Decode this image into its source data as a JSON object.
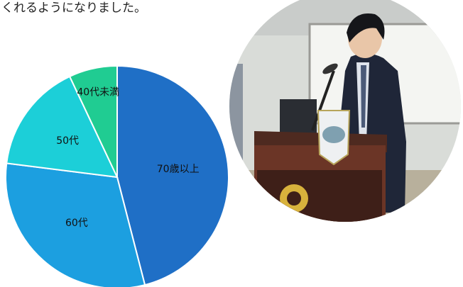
{
  "intro": {
    "text": "くれるようになりました。"
  },
  "chart_data": {
    "type": "pie",
    "categories": [
      "70歳以上",
      "60代",
      "50代",
      "40代未満"
    ],
    "values": [
      46,
      31,
      16,
      7
    ],
    "colors": [
      "#1f6fc6",
      "#1c9fe0",
      "#1ccfd8",
      "#20cc92"
    ]
  }
}
